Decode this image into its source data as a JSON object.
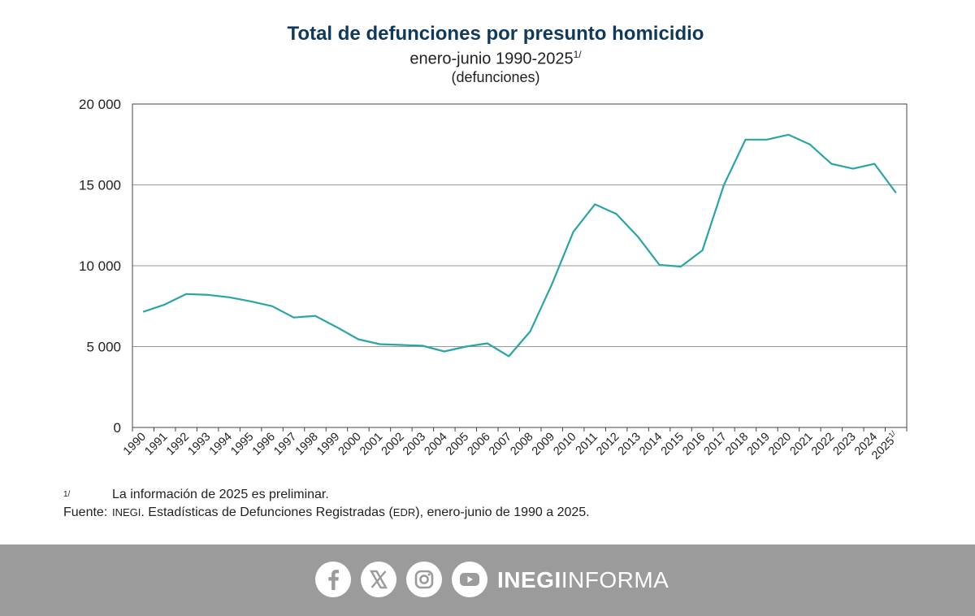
{
  "chart_data": {
    "type": "line",
    "title": "Total de defunciones por presunto homicidio",
    "subtitle": "enero-junio 1990-2025",
    "subtitle_mark": "1/",
    "units": "(defunciones)",
    "x": [
      "1990",
      "1991",
      "1992",
      "1993",
      "1994",
      "1995",
      "1996",
      "1997",
      "1998",
      "1999",
      "2000",
      "2001",
      "2002",
      "2003",
      "2004",
      "2005",
      "2006",
      "2007",
      "2008",
      "2009",
      "2010",
      "2011",
      "2012",
      "2013",
      "2014",
      "2015",
      "2016",
      "2017",
      "2018",
      "2019",
      "2020",
      "2021",
      "2022",
      "2023",
      "2024",
      "2025"
    ],
    "x_last_mark": "1/",
    "series": [
      {
        "values": [
          7150,
          7600,
          8250,
          8200,
          8050,
          7800,
          7500,
          6800,
          6900,
          6200,
          5450,
          5150,
          5100,
          5050,
          4700,
          5000,
          5200,
          4400,
          5950,
          8850,
          12100,
          13800,
          13200,
          11800,
          10050,
          9950,
          10950,
          15000,
          17800,
          17800,
          18100,
          17500,
          16300,
          16000,
          16300,
          14500
        ]
      }
    ],
    "ylim": [
      0,
      20000
    ],
    "yticks": [
      {
        "value": 0,
        "label": "0"
      },
      {
        "value": 5000,
        "label": "5 000"
      },
      {
        "value": 10000,
        "label": "10 000"
      },
      {
        "value": 15000,
        "label": "15 000"
      },
      {
        "value": 20000,
        "label": "20 000"
      }
    ],
    "grid": true,
    "line_color": "#2aa5a5"
  },
  "notes": {
    "mark": "1/",
    "preliminary": "La información de 2025 es preliminar.",
    "source_label": "Fuente:",
    "source_org": "INEGI",
    "source_text_a": ". Estadísticas de Defunciones Registradas (",
    "source_abbr": "EDR",
    "source_text_b": "), enero-junio de 1990 a 2025."
  },
  "footer": {
    "icons": [
      "facebook-icon",
      "x-icon",
      "instagram-icon",
      "youtube-icon"
    ],
    "brand_bold": "INEGI",
    "brand_light": "INFORMA",
    "bg_color": "#9b9b9b"
  }
}
